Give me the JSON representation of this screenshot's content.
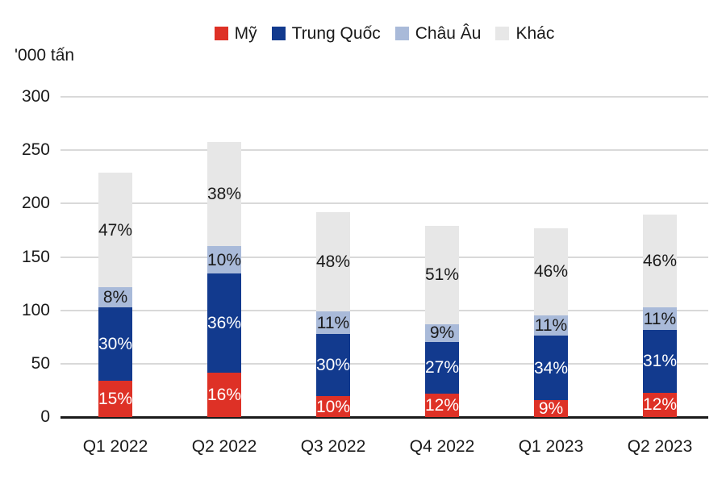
{
  "page": {
    "background": "#ffffff",
    "text_color": "#1a1a1a"
  },
  "chart_data": {
    "type": "bar",
    "stacked": true,
    "title": "",
    "unit_label": "'000 tấn",
    "categories": [
      "Q1 2022",
      "Q2 2022",
      "Q3 2022",
      "Q4 2022",
      "Q1 2023",
      "Q2 2023"
    ],
    "totals": [
      229,
      258,
      194,
      181,
      177,
      190
    ],
    "series": [
      {
        "name": "Mỹ",
        "color": "#DE3126",
        "label_color": "#ffffff",
        "pct": [
          15,
          16,
          10,
          12,
          9,
          12
        ],
        "labels": [
          "15%",
          "16%",
          "10%",
          "12%",
          "9%",
          "12%"
        ]
      },
      {
        "name": "Trung Quốc",
        "color": "#123A8E",
        "label_color": "#ffffff",
        "pct": [
          30,
          36,
          30,
          27,
          34,
          31
        ],
        "labels": [
          "30%",
          "36%",
          "30%",
          "27%",
          "34%",
          "31%"
        ]
      },
      {
        "name": "Châu Âu",
        "color": "#A9BAD9",
        "label_color": "#1a1a1a",
        "pct": [
          8,
          10,
          11,
          9,
          11,
          11
        ],
        "labels": [
          "8%",
          "10%",
          "11%",
          "9%",
          "11%",
          "11%"
        ]
      },
      {
        "name": "Khác",
        "color": "#E7E7E7",
        "label_color": "#1a1a1a",
        "pct": [
          47,
          38,
          48,
          51,
          46,
          46
        ],
        "labels": [
          "47%",
          "38%",
          "48%",
          "51%",
          "46%",
          "46%"
        ]
      }
    ],
    "y_ticks": [
      0,
      50,
      100,
      150,
      200,
      250,
      300
    ],
    "ylim": [
      0,
      300
    ],
    "grid": true,
    "grid_color": "#D9D9D9",
    "axis_color": "#1A1A1A",
    "legend_position": "top"
  }
}
